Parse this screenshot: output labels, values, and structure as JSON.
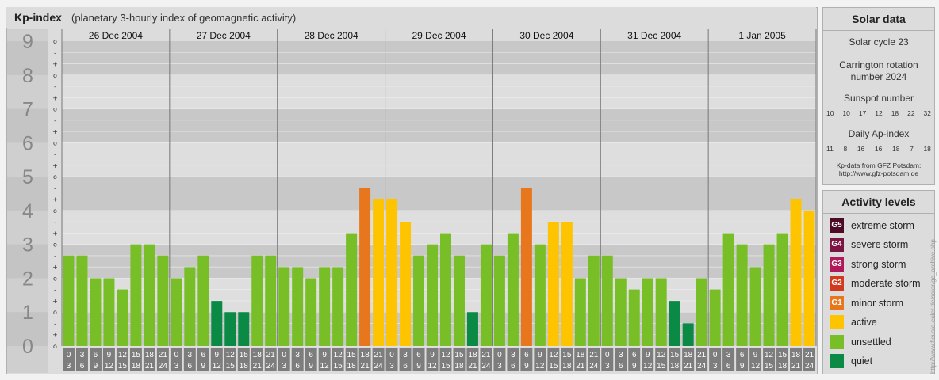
{
  "header": {
    "title": "Kp-index",
    "subtitle": "(planetary 3-hourly index of geomagnetic activity)"
  },
  "solar": {
    "title": "Solar data",
    "cycle": "Solar cycle 23",
    "carrington_1": "Carrington rotation",
    "carrington_2": "number 2024",
    "sunspot_title": "Sunspot number",
    "sunspot_values": [
      "10",
      "10",
      "17",
      "12",
      "18",
      "22",
      "32"
    ],
    "ap_title": "Daily Ap-index",
    "ap_values": [
      "11",
      "8",
      "16",
      "16",
      "18",
      "7",
      "18"
    ],
    "source_1": "Kp-data from GFZ Potsdam:",
    "source_2": "http://www.gfz-potsdam.de"
  },
  "legend": {
    "title": "Activity levels",
    "items": [
      {
        "code": "G5",
        "label": "extreme storm",
        "color": "#4d0b26"
      },
      {
        "code": "G4",
        "label": "severe storm",
        "color": "#7a1544"
      },
      {
        "code": "G3",
        "label": "strong storm",
        "color": "#b01a5a"
      },
      {
        "code": "G2",
        "label": "moderate storm",
        "color": "#d23a1e"
      },
      {
        "code": "G1",
        "label": "minor storm",
        "color": "#e8761c"
      },
      {
        "code": "",
        "label": "active",
        "color": "#ffc400"
      },
      {
        "code": "",
        "label": "unsettled",
        "color": "#77be27"
      },
      {
        "code": "",
        "label": "quiet",
        "color": "#0b8a46"
      }
    ]
  },
  "watermark": "http://www.fleusie-euler.de/solar/go_archive.php",
  "chart_data": {
    "type": "bar",
    "title": "Kp-index",
    "subtitle": "(planetary 3-hourly index of geomagnetic activity)",
    "ylim": [
      0,
      9
    ],
    "y_ticks": [
      "0",
      "1",
      "2",
      "3",
      "4",
      "5",
      "6",
      "7",
      "8",
      "9"
    ],
    "minor_ticks": [
      "o",
      "+",
      "-"
    ],
    "days": [
      "26 Dec 2004",
      "27 Dec 2004",
      "28 Dec 2004",
      "29 Dec 2004",
      "30 Dec 2004",
      "31 Dec 2004",
      "1 Jan 2005"
    ],
    "hour_start": [
      "0",
      "3",
      "6",
      "9",
      "12",
      "15",
      "18",
      "21"
    ],
    "hour_end": [
      "3",
      "6",
      "9",
      "12",
      "15",
      "18",
      "21",
      "24"
    ],
    "series": [
      {
        "values": [
          2.67,
          2.67,
          2.0,
          2.0,
          1.67,
          3.0,
          3.0,
          2.67,
          2.0,
          2.33,
          2.67,
          1.33,
          1.0,
          1.0,
          2.67,
          2.67,
          2.33,
          2.33,
          2.0,
          2.33,
          2.33,
          3.33,
          4.67,
          4.33,
          4.33,
          3.67,
          2.67,
          3.0,
          3.33,
          2.67,
          1.0,
          3.0,
          2.67,
          3.33,
          4.67,
          3.0,
          3.67,
          3.67,
          2.0,
          2.67,
          2.67,
          2.0,
          1.67,
          2.0,
          2.0,
          1.33,
          0.67,
          2.0,
          1.67,
          3.33,
          3.0,
          2.33,
          3.0,
          3.33,
          4.33,
          4.0
        ]
      }
    ],
    "colors": {
      "quiet": "#0b8a46",
      "unsettled": "#77be27",
      "active": "#ffc400",
      "minor_storm": "#e8761c"
    },
    "grid": true
  }
}
